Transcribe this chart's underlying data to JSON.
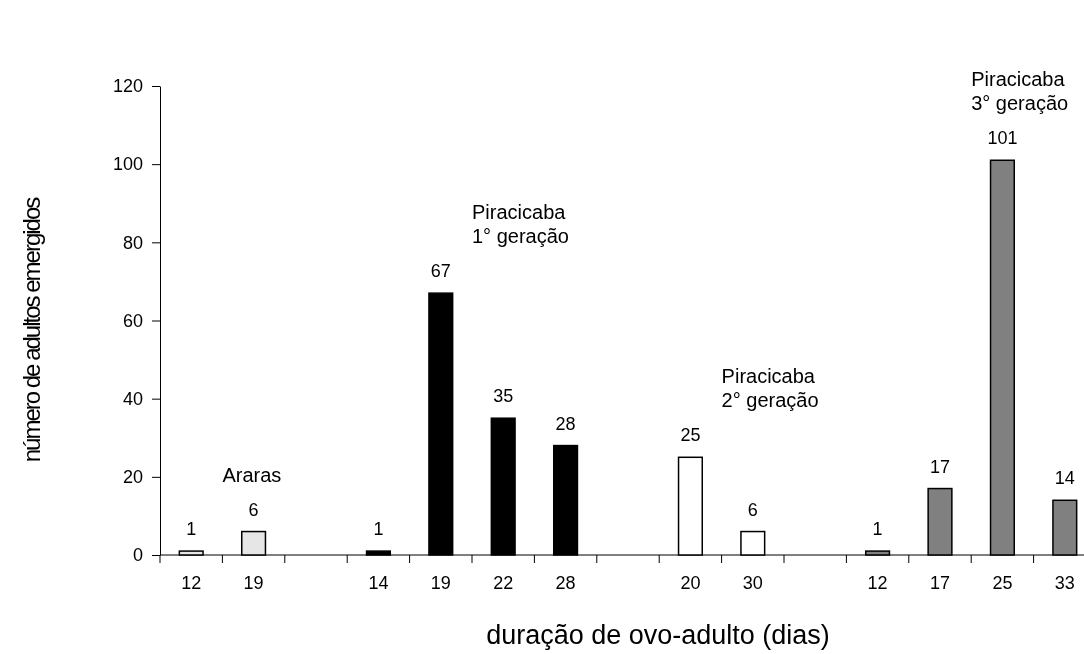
{
  "chart_data": {
    "type": "bar",
    "xlabel": "duração de ovo-adulto (dias)",
    "ylabel": "número de adultos emergidos",
    "categories": [
      "12",
      "19",
      null,
      "14",
      "19",
      "22",
      "28",
      null,
      "20",
      "30",
      null,
      "12",
      "17",
      "25",
      "33"
    ],
    "series": [
      {
        "name": "Araras",
        "color": "#e6e6e6",
        "values": [
          1,
          6,
          null,
          null,
          null,
          null,
          null,
          null,
          null,
          null,
          null,
          null,
          null,
          null,
          null
        ]
      },
      {
        "name": "Piracicaba 1° geração",
        "color": "#000000",
        "values": [
          null,
          null,
          null,
          1,
          67,
          35,
          28,
          null,
          null,
          null,
          null,
          null,
          null,
          null,
          null
        ]
      },
      {
        "name": "Piracicaba 2° geração",
        "color": "#ffffff",
        "values": [
          null,
          null,
          null,
          null,
          null,
          null,
          null,
          null,
          25,
          6,
          null,
          null,
          null,
          null,
          null
        ]
      },
      {
        "name": "Piracicaba 3° geração",
        "color": "#808080",
        "values": [
          null,
          null,
          null,
          null,
          null,
          null,
          null,
          null,
          null,
          null,
          null,
          1,
          17,
          101,
          14
        ]
      }
    ],
    "ylim": [
      0,
      120
    ],
    "yticks": [
      0,
      20,
      40,
      60,
      80,
      100,
      120
    ],
    "data_labels": true,
    "grid": false
  }
}
